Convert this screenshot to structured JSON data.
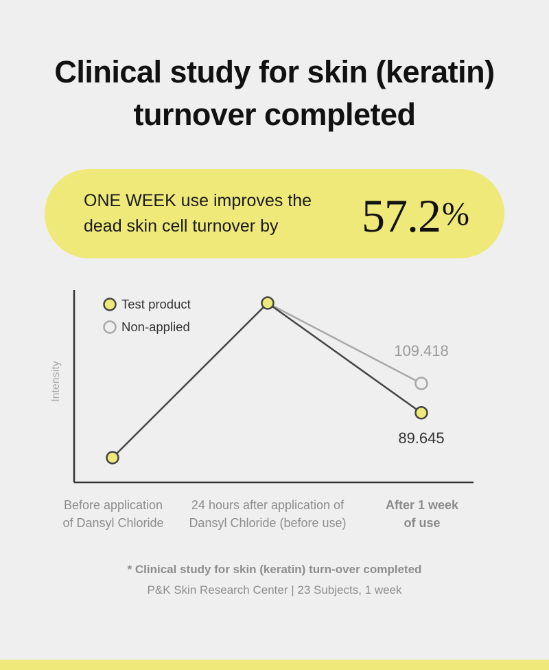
{
  "header": {
    "title_line1": "Clinical study for skin (keratin)",
    "title_line2": "turnover completed"
  },
  "highlight": {
    "text_line1": "ONE WEEK use improves the",
    "text_line2": "dead skin cell turnover by",
    "value": "57.2",
    "unit": "%"
  },
  "chart_data": {
    "type": "line",
    "ylabel": "Intensity",
    "categories": [
      [
        "Before application",
        "of Dansyl Chloride"
      ],
      [
        "24 hours after application of",
        "Dansyl Chloride (before use)"
      ],
      [
        "After 1 week",
        "of use"
      ]
    ],
    "series": [
      {
        "name": "Test product",
        "values": [
          null,
          null,
          89.645
        ],
        "marker": "filled",
        "color": "#444444",
        "fill": "#efe97a"
      },
      {
        "name": "Non-applied",
        "values": [
          null,
          null,
          109.418
        ],
        "marker": "hollow",
        "color": "#a8a8a8",
        "fill": "#efefef"
      }
    ],
    "relative_levels": {
      "Test product": [
        0.0,
        1.0,
        0.29
      ],
      "Non-applied": [
        null,
        1.0,
        0.48
      ]
    },
    "data_labels": {
      "Test product": "89.645",
      "Non-applied": "109.418"
    },
    "legend": "top-left",
    "grid": false
  },
  "footnote": {
    "line1": "* Clinical study for skin (keratin) turn-over completed",
    "line2": "P&K Skin Research Center | 23 Subjects, 1 week"
  },
  "colors": {
    "background": "#efefef",
    "accent_yellow": "#efe97a",
    "test_line": "#444444",
    "nonapplied_line": "#a8a8a8"
  }
}
